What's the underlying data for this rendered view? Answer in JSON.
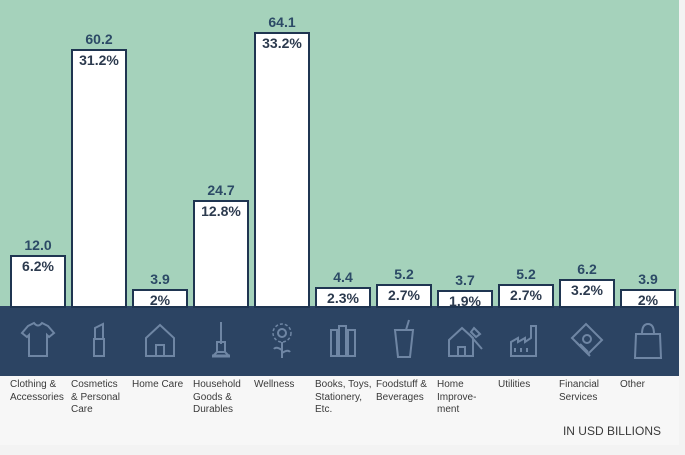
{
  "chart_data": {
    "type": "bar",
    "categories": [
      "Clothing &\nAccessories",
      "Cosmetics\n& Personal\nCare",
      "Home Care",
      "Household\nGoods &\nDurables",
      "Wellness",
      "Books, Toys,\nStationery,\nEtc.",
      "Foodstuff &\nBeverages",
      "Home\nImprove-\nment",
      "Utilities",
      "Financial\nServices",
      "Other"
    ],
    "values": [
      12.0,
      60.2,
      3.9,
      24.7,
      64.1,
      4.4,
      5.2,
      3.7,
      5.2,
      6.2,
      3.9
    ],
    "value_labels": [
      "12.0",
      "60.2",
      "3.9",
      "24.7",
      "64.1",
      "4.4",
      "5.2",
      "3.7",
      "5.2",
      "6.2",
      "3.9"
    ],
    "percent_labels": [
      "6.2%",
      "31.2%",
      "2%",
      "12.8%",
      "33.2%",
      "2.3%",
      "2.7%",
      "1.9%",
      "2.7%",
      "3.2%",
      "2%"
    ],
    "unit_note": "IN USD BILLIONS",
    "ylim": [
      0,
      64.1
    ],
    "grid": false
  },
  "colors": {
    "plot_background": "#a5d2bb",
    "icon_band": "#2c4463",
    "bar_fill": "#ffffff",
    "bar_border": "#1f3551",
    "value_text": "#2c4a66"
  },
  "icons": [
    "tshirt-icon",
    "lipstick-icon",
    "house-icon",
    "vacuum-icon",
    "flower-icon",
    "books-icon",
    "cup-icon",
    "home-hammer-icon",
    "factory-icon",
    "money-icon",
    "bag-icon"
  ]
}
